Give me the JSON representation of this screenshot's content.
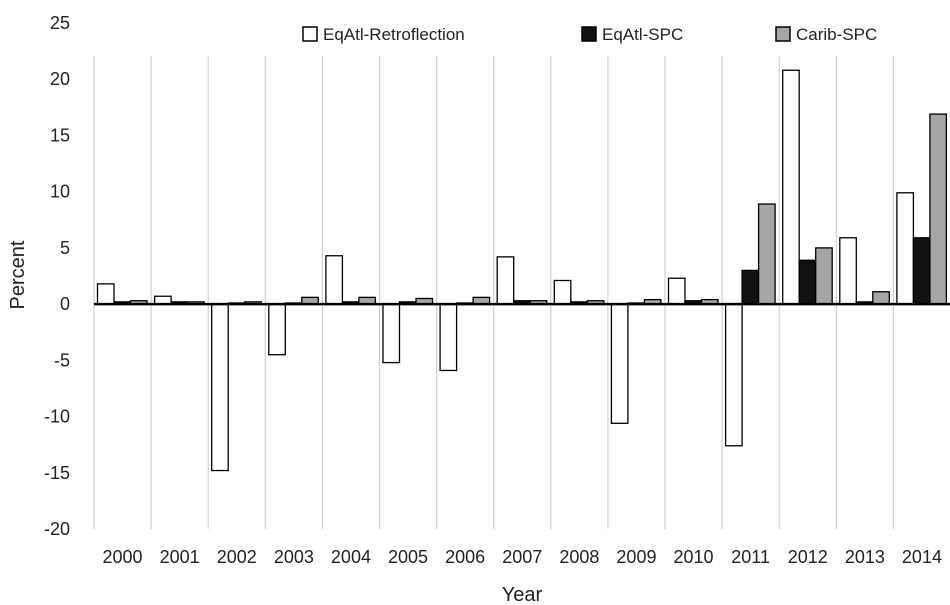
{
  "chart_data": {
    "type": "bar",
    "title": "",
    "xlabel": "Year",
    "ylabel": "Percent",
    "ylim": [
      -20,
      25
    ],
    "yticks": [
      -20,
      -15,
      -10,
      -5,
      0,
      5,
      10,
      15,
      20,
      25
    ],
    "categories": [
      "2000",
      "2001",
      "2002",
      "2003",
      "2004",
      "2005",
      "2006",
      "2007",
      "2008",
      "2009",
      "2010",
      "2011",
      "2012",
      "2013",
      "2014"
    ],
    "series": [
      {
        "name": "EqAtl-Retroflection",
        "color": "#ffffff",
        "values": [
          1.8,
          0.7,
          -14.8,
          -4.5,
          4.3,
          -5.2,
          -5.9,
          4.2,
          2.1,
          -10.6,
          2.3,
          -12.6,
          20.8,
          5.9,
          9.9
        ]
      },
      {
        "name": "EqAtl-SPC",
        "color": "#111111",
        "values": [
          0.2,
          0.2,
          0.1,
          0.1,
          0.2,
          0.2,
          0.1,
          0.3,
          0.2,
          0.1,
          0.3,
          3.0,
          3.9,
          0.2,
          5.9
        ]
      },
      {
        "name": "Carib-SPC",
        "color": "#a6a6a6",
        "values": [
          0.3,
          0.2,
          0.2,
          0.6,
          0.6,
          0.5,
          0.6,
          0.3,
          0.3,
          0.4,
          0.4,
          8.9,
          5.0,
          1.1,
          16.9
        ]
      }
    ],
    "legend_position": "top",
    "grid": "vertical category separators"
  }
}
